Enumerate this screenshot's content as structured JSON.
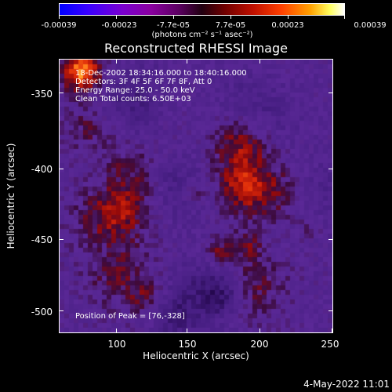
{
  "colorbar": {
    "ticks": [
      "-0.00039",
      "-0.00023",
      "-7.7e-05",
      "7.7e-05",
      "0.00023",
      "0.00039"
    ],
    "units": "(photons cm⁻² s⁻¹ asec⁻²)"
  },
  "title": "Reconstructed RHESSI Image",
  "info": {
    "time_range": "18-Dec-2002 18:34:16.000 to 18:40:16.000",
    "detectors": "Detectors: 3F 4F 5F 6F 7F 8F, Att 0",
    "energy": "Energy Range: 25.0 - 50.0 keV",
    "clean": "Clean    Total counts: 6.50E+03",
    "peak": "Position of Peak = [76,-328]"
  },
  "axes": {
    "xlabel": "Heliocentric X (arcsec)",
    "ylabel": "Heliocentric Y (arcsec)",
    "xticks": [
      "100",
      "150",
      "200",
      "250"
    ],
    "yticks": [
      "-350",
      "-400",
      "-450",
      "-500"
    ]
  },
  "timestamp": "4-May-2022 11:01"
}
